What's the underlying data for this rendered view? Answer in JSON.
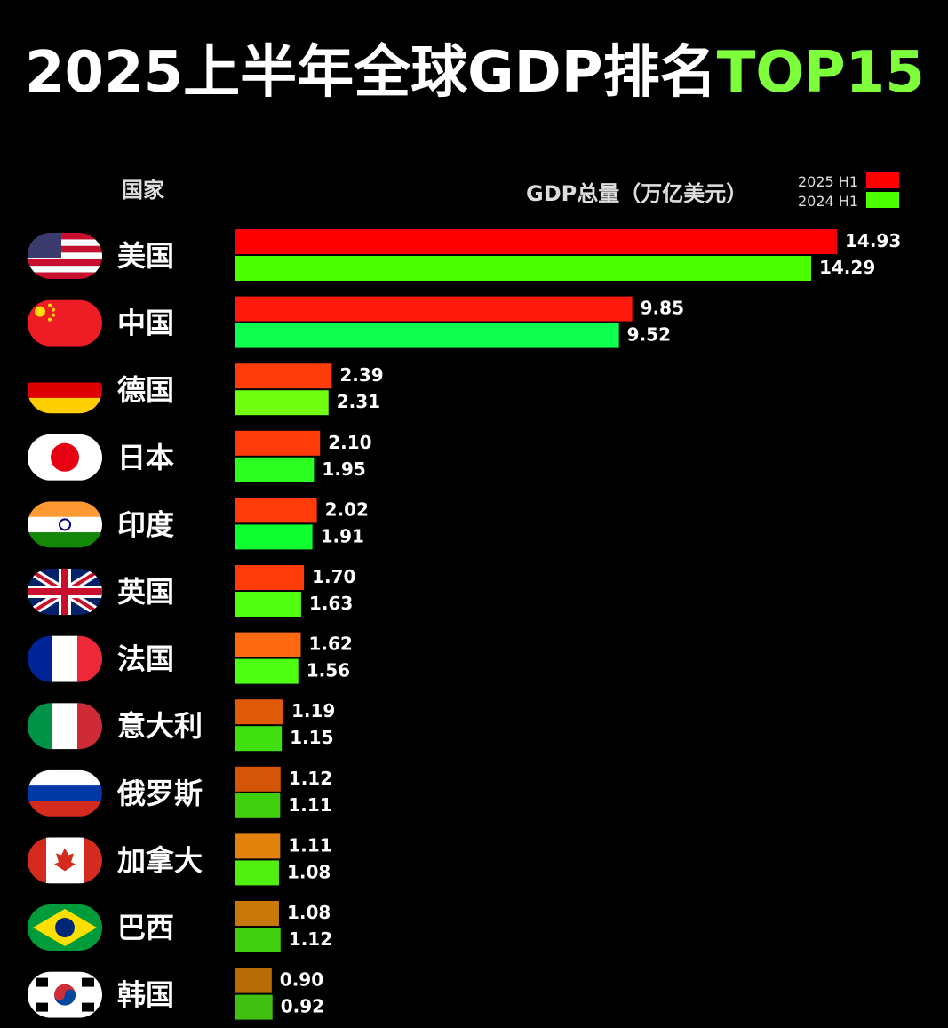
{
  "chart_data": {
    "type": "bar",
    "orientation": "horizontal",
    "title": "2025上半年全球GDP排名",
    "title_highlight": "TOP15",
    "category_header": "国家",
    "value_header": "GDP总量（万亿美元）",
    "categories": [
      "美国",
      "中国",
      "德国",
      "日本",
      "印度",
      "英国",
      "法国",
      "意大利",
      "俄罗斯",
      "加拿大",
      "巴西",
      "韩国"
    ],
    "series": [
      {
        "name": "2025 H1",
        "color": "#ff0000",
        "bar_colors": [
          "#ff0000",
          "#ff1a0d",
          "#ff3c0a",
          "#ff3c0a",
          "#ff3c0a",
          "#ff3c0a",
          "#ff6a10",
          "#e05a0a",
          "#d55508",
          "#e0820c",
          "#c87808",
          "#b86c08"
        ],
        "values": [
          14.93,
          9.85,
          2.39,
          2.1,
          2.02,
          1.7,
          1.62,
          1.19,
          1.12,
          1.11,
          1.08,
          0.9
        ],
        "value_labels": [
          "14.93",
          "9.85",
          "2.39",
          "2.10",
          "2.02",
          "1.70",
          "1.62",
          "1.19",
          "1.12",
          "1.11",
          "1.08",
          "0.90"
        ]
      },
      {
        "name": "2024 H1",
        "color": "#4cff00",
        "bar_colors": [
          "#4cff00",
          "#0fff50",
          "#70ff10",
          "#2aff20",
          "#10ff30",
          "#50ff10",
          "#4cff10",
          "#40e010",
          "#40d010",
          "#50f010",
          "#40d010",
          "#40c010"
        ],
        "values": [
          14.29,
          9.52,
          2.31,
          1.95,
          1.91,
          1.63,
          1.56,
          1.15,
          1.11,
          1.08,
          1.12,
          0.92
        ],
        "value_labels": [
          "14.29",
          "9.52",
          "2.31",
          "1.95",
          "1.91",
          "1.63",
          "1.56",
          "1.15",
          "1.11",
          "1.08",
          "1.12",
          "0.92"
        ]
      }
    ]
  }
}
